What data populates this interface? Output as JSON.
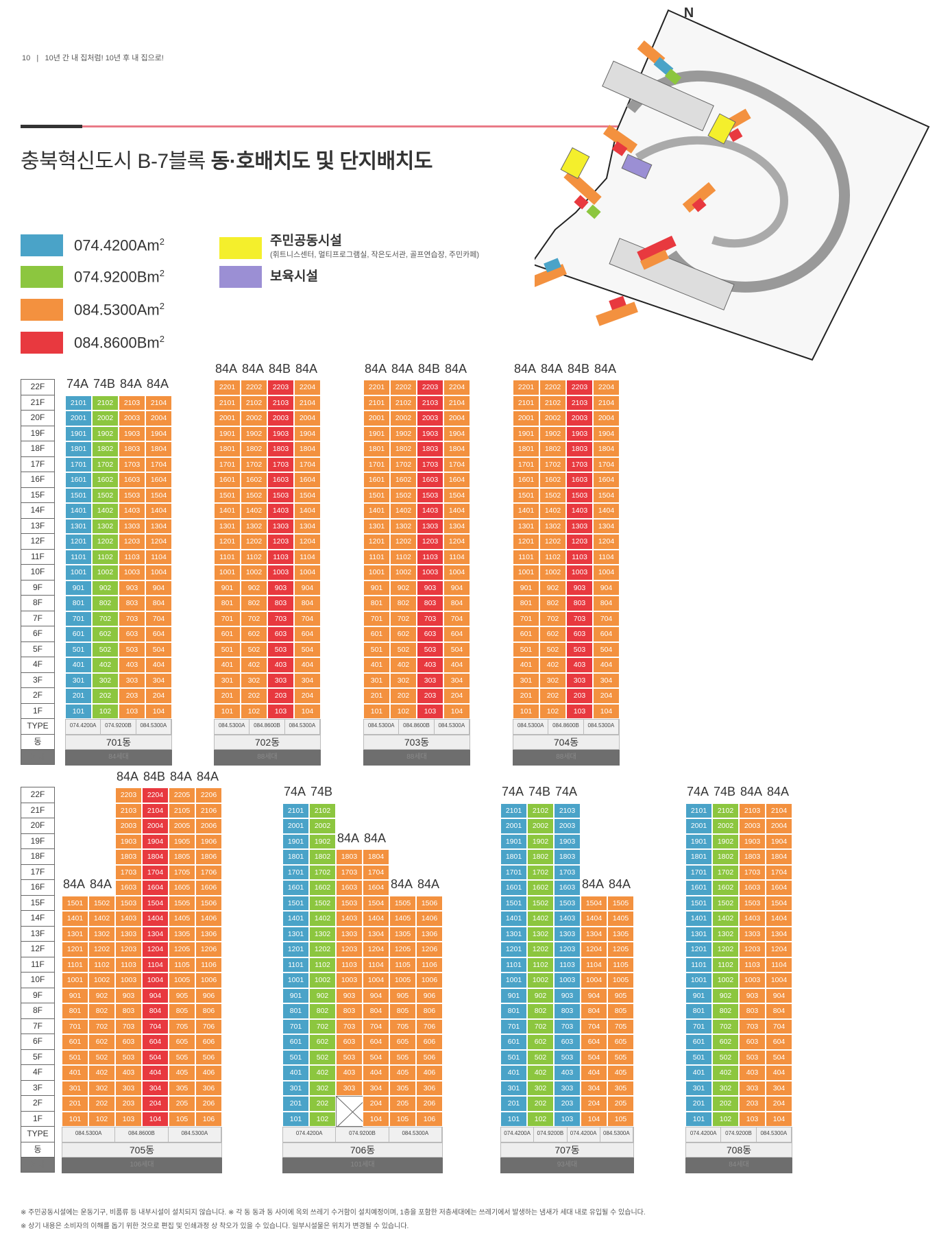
{
  "header": {
    "page_num": "10",
    "separator": "|",
    "tagline": "10년 간 내 집처럼! 10년 후 내 집으로!"
  },
  "title": {
    "normal": "충북혁신도시 B-7블록 ",
    "bold": "동·호배치도 및 단지배치도"
  },
  "legend": [
    {
      "label": "074.4200Am²",
      "color": "#4aa3c8"
    },
    {
      "label": "074.9200Bm²",
      "color": "#8cc63f"
    },
    {
      "label": "084.5300Am²",
      "color": "#f3913f"
    },
    {
      "label": "084.8600Bm²",
      "color": "#e8393f"
    }
  ],
  "facilities": [
    {
      "label": "주민공동시설",
      "sub": "(휘트니스센터, 멀티프로그램실, 작은도서관, 골프연습장, 주민카페)",
      "color": "#f4ef2c"
    },
    {
      "label": "보육시설",
      "sub": "",
      "color": "#9b8fd4"
    }
  ],
  "map": {
    "north": "N"
  },
  "floor_labels_top": [
    "22F",
    "21F",
    "20F",
    "19F",
    "18F",
    "17F",
    "16F",
    "15F",
    "14F",
    "13F",
    "12F",
    "11F",
    "10F",
    "9F",
    "8F",
    "7F",
    "6F",
    "5F",
    "4F",
    "3F",
    "2F",
    "1F",
    "TYPE",
    "동",
    "세대"
  ],
  "colors": {
    "74A": "#4aa3c8",
    "74B": "#8cc63f",
    "84A": "#f3913f",
    "84B": "#e8393f"
  },
  "buildings": [
    {
      "dong": "701동",
      "households": "84세대",
      "types": [
        "74A",
        "74B",
        "84A",
        "84A"
      ],
      "floors": 21,
      "type_labels": [
        "074.4200A",
        "074.9200B",
        "084.5300A"
      ]
    },
    {
      "dong": "702동",
      "households": "88세대",
      "types": [
        "84A",
        "84A",
        "84B",
        "84A"
      ],
      "floors": 22,
      "type_labels": [
        "084.5300A",
        "084.8600B",
        "084.5300A"
      ]
    },
    {
      "dong": "703동",
      "households": "88세대",
      "types": [
        "84A",
        "84A",
        "84B",
        "84A"
      ],
      "floors": 22,
      "type_labels": [
        "084.5300A",
        "084.8600B",
        "084.5300A"
      ]
    },
    {
      "dong": "704동",
      "households": "88세대",
      "types": [
        "84A",
        "84A",
        "84B",
        "84A"
      ],
      "floors": 22,
      "type_labels": [
        "084.5300A",
        "084.8600B",
        "084.5300A"
      ]
    },
    {
      "dong": "705동",
      "households": "106세대",
      "types": [
        "84A",
        "84A",
        "84A",
        "84B",
        "84A",
        "84A"
      ],
      "floors": [
        15,
        15,
        22,
        22,
        22,
        22
      ],
      "type_labels": [
        "084.5300A",
        "084.8600B",
        "084.5300A"
      ]
    },
    {
      "dong": "706동",
      "households": "101세대",
      "types": [
        "74A",
        "74B",
        "84A",
        "84A",
        "84A",
        "84A"
      ],
      "floors": [
        21,
        21,
        18,
        18,
        15,
        15
      ],
      "type_labels": [
        "074.4200A",
        "074.9200B",
        "084.5300A"
      ]
    },
    {
      "dong": "707동",
      "households": "93세대",
      "types": [
        "74A",
        "74B",
        "74A",
        "84A",
        "84A"
      ],
      "floors": [
        21,
        21,
        21,
        15,
        15
      ],
      "type_labels": [
        "074.4200A",
        "074.9200B",
        "074.4200A",
        "084.5300A"
      ]
    },
    {
      "dong": "708동",
      "households": "84세대",
      "types": [
        "74A",
        "74B",
        "84A",
        "84A"
      ],
      "floors": 21,
      "type_labels": [
        "074.4200A",
        "074.9200B",
        "084.5300A"
      ]
    }
  ],
  "notes": [
    "※ 주민공동시설에는 운동기구, 비품류 등 내부시설이 설치되지 않습니다.  ※ 각 동 동과 동 사이에 옥외 쓰레기 수거함이 설치예정이며, 1층을 포함한 저층세대에는 쓰레기에서 발생하는 냄새가 세대 내로 유입될 수 있습니다.",
    "※ 상기 내용은 소비자의 이해를 돕기 위한 것으로 편집 및 인쇄과정 상 착오가 있을 수 있습니다. 일부시설물은 위치가 변경될 수 있습니다."
  ]
}
